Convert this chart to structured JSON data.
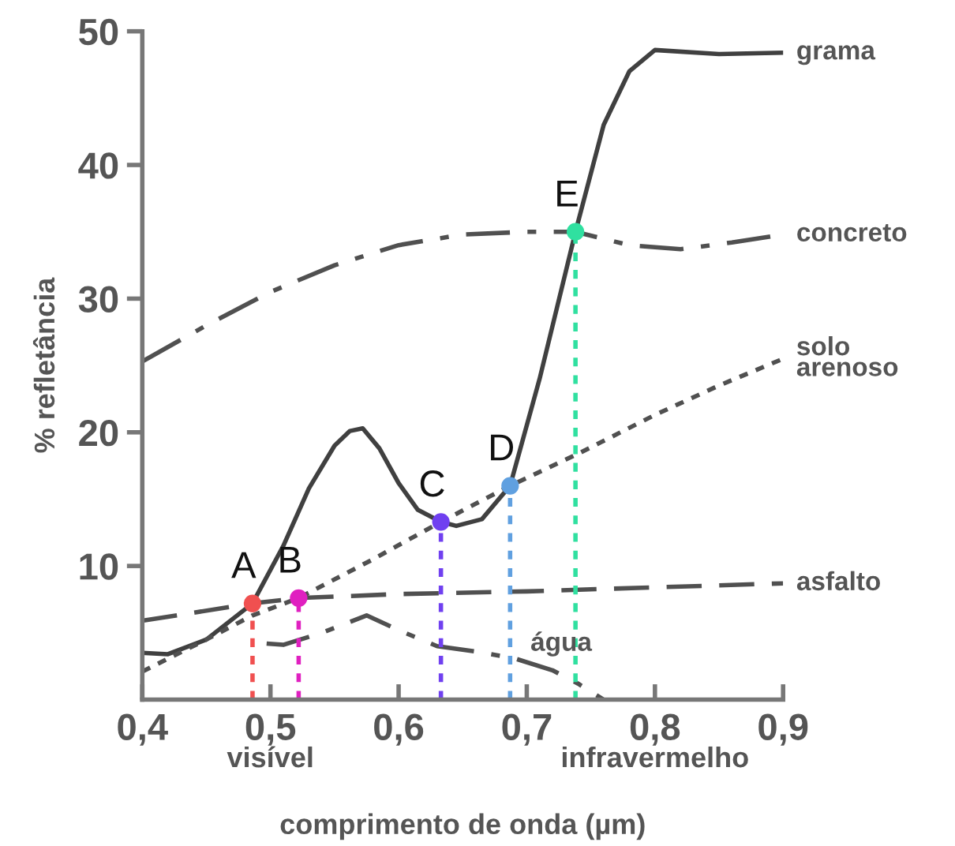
{
  "chart_data": {
    "type": "line",
    "xlabel": "comprimento de onda (µm)",
    "ylabel": "% refletância",
    "xlim": [
      0.4,
      0.9
    ],
    "ylim": [
      0,
      50
    ],
    "xticks": [
      {
        "value": 0.4,
        "label": "0,4"
      },
      {
        "value": 0.5,
        "label": "0,5"
      },
      {
        "value": 0.6,
        "label": "0,6"
      },
      {
        "value": 0.7,
        "label": "0,7"
      },
      {
        "value": 0.8,
        "label": "0,8"
      },
      {
        "value": 0.9,
        "label": "0,9"
      }
    ],
    "yticks": [
      10,
      20,
      30,
      40,
      50
    ],
    "grid": false,
    "legend": false,
    "annotations": [
      "visível",
      "infravermelho"
    ],
    "series": [
      {
        "name": "grama",
        "color": "#404040",
        "line_style": "solid",
        "x": [
          0.4,
          0.42,
          0.45,
          0.486,
          0.51,
          0.53,
          0.55,
          0.562,
          0.572,
          0.585,
          0.6,
          0.615,
          0.633,
          0.645,
          0.665,
          0.687,
          0.71,
          0.738,
          0.76,
          0.78,
          0.8,
          0.85,
          0.9
        ],
        "values": [
          3.5,
          3.4,
          4.5,
          7.2,
          11.5,
          15.8,
          19.0,
          20.1,
          20.3,
          18.8,
          16.2,
          14.2,
          13.3,
          13.0,
          13.5,
          16.0,
          24.0,
          35.0,
          43.0,
          47.0,
          48.6,
          48.3,
          48.4
        ]
      },
      {
        "name": "concreto",
        "color": "#505050",
        "line_style": "dashdot",
        "x": [
          0.4,
          0.45,
          0.5,
          0.55,
          0.6,
          0.65,
          0.7,
          0.738,
          0.78,
          0.82,
          0.86,
          0.9
        ],
        "values": [
          25.3,
          28.0,
          30.5,
          32.5,
          34.0,
          34.8,
          35.0,
          35.0,
          34.0,
          33.7,
          34.2,
          34.8
        ]
      },
      {
        "name": "solo\narenoso",
        "color": "#505050",
        "line_style": "dotted",
        "x": [
          0.4,
          0.45,
          0.486,
          0.522,
          0.58,
          0.633,
          0.687,
          0.738,
          0.8,
          0.85,
          0.9
        ],
        "values": [
          2.1,
          4.5,
          6.3,
          7.6,
          10.5,
          13.3,
          16.0,
          18.3,
          21.3,
          23.5,
          25.5
        ]
      },
      {
        "name": "asfalto",
        "color": "#505050",
        "line_style": "dashed",
        "x": [
          0.4,
          0.486,
          0.522,
          0.6,
          0.7,
          0.8,
          0.9
        ],
        "values": [
          5.9,
          7.2,
          7.6,
          7.9,
          8.1,
          8.4,
          8.7
        ]
      },
      {
        "name": "água",
        "color": "#505050",
        "line_style": "dashdot",
        "x": [
          0.497,
          0.51,
          0.54,
          0.575,
          0.6,
          0.63,
          0.66,
          0.69,
          0.72,
          0.74,
          0.76
        ],
        "values": [
          4.2,
          4.1,
          5.0,
          6.3,
          5.2,
          4.0,
          3.6,
          3.1,
          2.2,
          1.2,
          0
        ]
      },
      {
        "type": "lollipop",
        "name": "A",
        "color": "#f05050",
        "marker": "circle",
        "line_style": "dotted",
        "x": [
          0.486
        ],
        "values": [
          7.2
        ]
      },
      {
        "type": "lollipop",
        "name": "B",
        "color": "#e020c0",
        "marker": "circle",
        "line_style": "dotted",
        "x": [
          0.522
        ],
        "values": [
          7.6
        ]
      },
      {
        "type": "lollipop",
        "name": "C",
        "color": "#7040f0",
        "marker": "circle",
        "line_style": "dotted",
        "x": [
          0.633
        ],
        "values": [
          13.3
        ]
      },
      {
        "type": "lollipop",
        "name": "D",
        "color": "#60a0e0",
        "marker": "circle",
        "line_style": "dotted",
        "x": [
          0.687
        ],
        "values": [
          16.0
        ]
      },
      {
        "type": "lollipop",
        "name": "E",
        "color": "#30e0a0",
        "marker": "circle",
        "line_style": "dotted",
        "x": [
          0.738
        ],
        "values": [
          35.0
        ]
      }
    ]
  }
}
